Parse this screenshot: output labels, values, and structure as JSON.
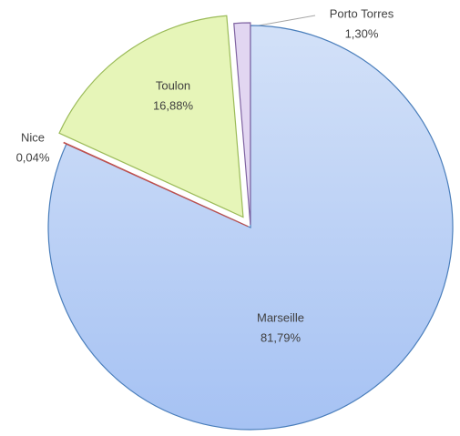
{
  "chart_data": {
    "type": "pie",
    "categories": [
      "Marseille",
      "Nice",
      "Toulon",
      "Porto Torres"
    ],
    "values": [
      81.79,
      0.04,
      16.88,
      1.3
    ],
    "value_labels": [
      "81,79%",
      "0,04%",
      "16,88%",
      "1,30%"
    ],
    "colors": [
      "#bcd2f6",
      "#f2c4c2",
      "#e6f5b8",
      "#e2d6f1"
    ],
    "edge_colors": [
      "#4a7ebb",
      "#c0504d",
      "#9bbb59",
      "#8064a2"
    ]
  }
}
